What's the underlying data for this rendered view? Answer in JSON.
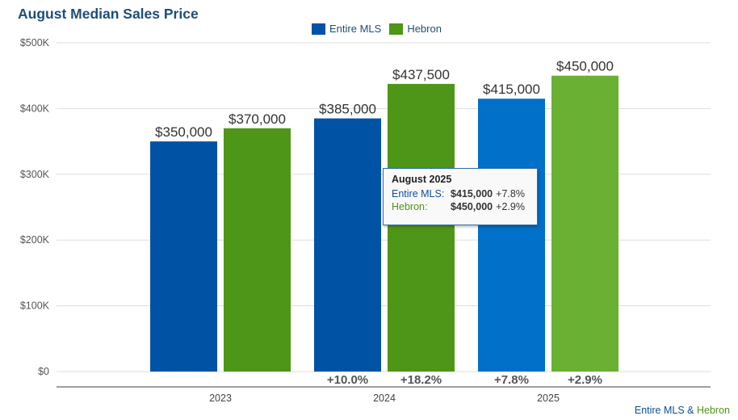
{
  "chart_data": {
    "type": "bar",
    "title": "August Median Sales Price",
    "categories": [
      "2023",
      "2024",
      "2025"
    ],
    "series": [
      {
        "name": "Entire MLS",
        "values": [
          350000,
          385000,
          415000
        ],
        "value_labels": [
          "$350,000",
          "$385,000",
          "$415,000"
        ],
        "changes": [
          "",
          "+10.0%",
          "+7.8%"
        ],
        "colors": [
          "#0052a5",
          "#0052a5",
          "#0070c8"
        ]
      },
      {
        "name": "Hebron",
        "values": [
          370000,
          437500,
          450000
        ],
        "value_labels": [
          "$370,000",
          "$437,500",
          "$450,000"
        ],
        "changes": [
          "",
          "+18.2%",
          "+2.9%"
        ],
        "colors": [
          "#4e9617",
          "#4e9617",
          "#6ab133"
        ]
      }
    ],
    "ylim": [
      0,
      500000
    ],
    "yticks": [
      0,
      100000,
      200000,
      300000,
      400000,
      500000
    ],
    "ytick_labels": [
      "$0",
      "$100K",
      "$200K",
      "$300K",
      "$400K",
      "$500K"
    ],
    "xlabel": "",
    "ylabel": "",
    "grid": true,
    "legend": "top-center"
  },
  "legend": {
    "items": [
      {
        "label": "Entire MLS",
        "color": "#0052a5"
      },
      {
        "label": "Hebron",
        "color": "#4e9617"
      }
    ]
  },
  "tooltip": {
    "title": "August 2025",
    "rows": [
      {
        "name": "Entire MLS:",
        "value": "$415,000",
        "change": "+7.8%"
      },
      {
        "name": "Hebron:",
        "value": "$450,000",
        "change": "+2.9%"
      }
    ]
  },
  "footer": {
    "part1": "Entire MLS",
    "amp": " & ",
    "part2": "Hebron"
  }
}
